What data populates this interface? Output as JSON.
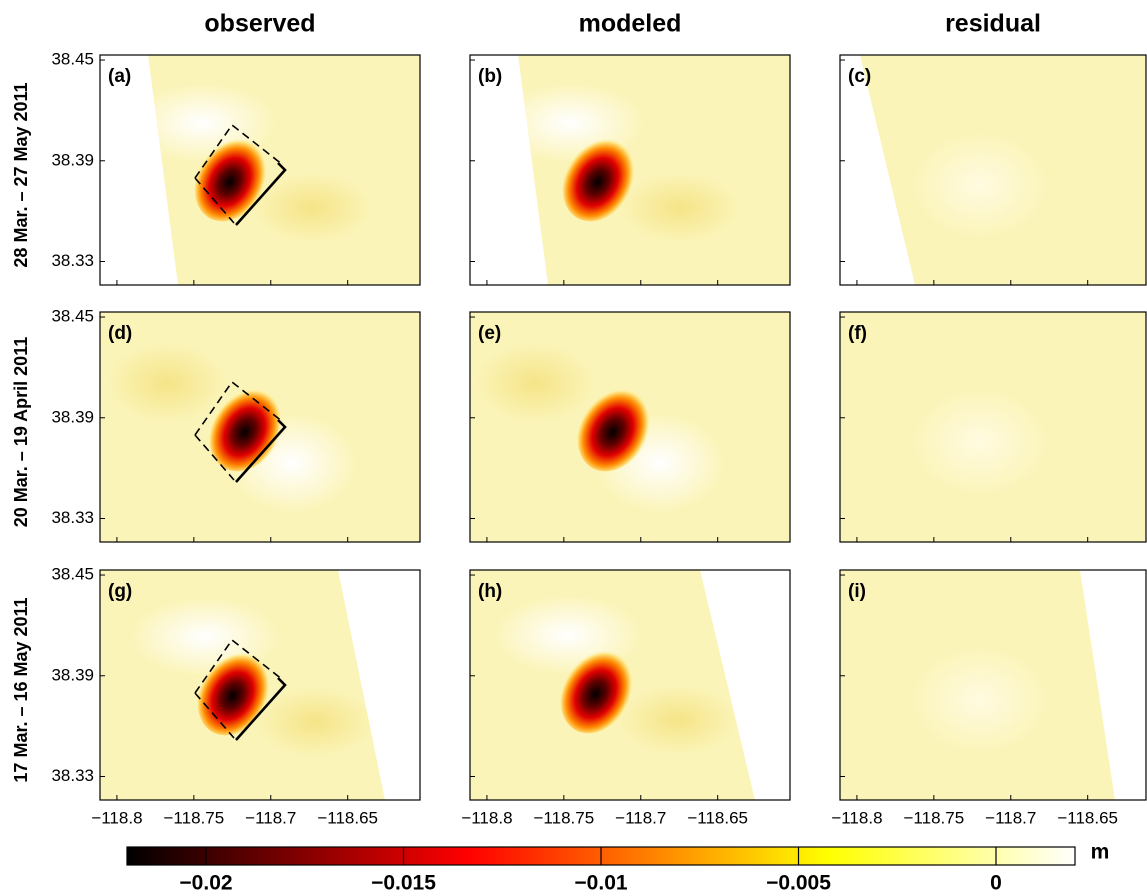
{
  "chart_data": {
    "type": "heatmap-grid",
    "columns": [
      "observed",
      "modeled",
      "residual"
    ],
    "rows": [
      "28 Mar. – 27 May 2011",
      "20 Mar. – 19 April 2011",
      "17 Mar. – 16 May 2011"
    ],
    "panel_labels": [
      "(a)",
      "(b)",
      "(c)",
      "(d)",
      "(e)",
      "(f)",
      "(g)",
      "(h)",
      "(i)"
    ],
    "xlim": [
      -118.811,
      -118.603
    ],
    "xticks": [
      {
        "value": -118.8,
        "label": "−118.8"
      },
      {
        "value": -118.75,
        "label": "−118.75"
      },
      {
        "value": -118.7,
        "label": "−118.7"
      },
      {
        "value": -118.65,
        "label": "−118.65"
      }
    ],
    "ylim": [
      38.316,
      38.453
    ],
    "yticks": [
      38.45,
      38.39,
      38.33
    ],
    "colorbar": {
      "label": "m",
      "clim": [
        -0.022,
        0.002
      ],
      "ticks": [
        {
          "value": -0.02,
          "label": "−0.02"
        },
        {
          "value": -0.015,
          "label": "−0.015"
        },
        {
          "value": -0.01,
          "label": "−0.01"
        },
        {
          "value": -0.005,
          "label": "−0.005"
        },
        0
      ]
    }
  }
}
